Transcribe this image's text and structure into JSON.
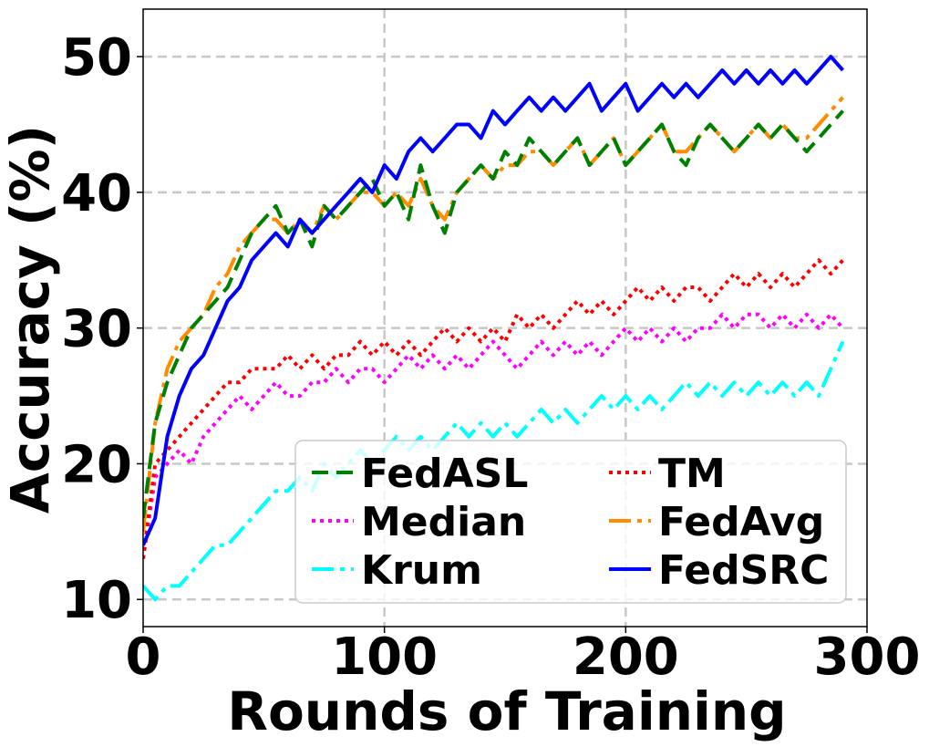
{
  "chart_data": {
    "type": "line",
    "xlabel": "Rounds of Training",
    "ylabel": "Accuracy (%)",
    "xlim": [
      0,
      300
    ],
    "ylim": [
      8,
      53.5
    ],
    "xticks": [
      "0",
      "100",
      "200",
      "300"
    ],
    "yticks": [
      "10",
      "20",
      "30",
      "40",
      "50"
    ],
    "grid": true,
    "legend_position": "lower-right",
    "x_start": 0,
    "x_step": 5,
    "series": [
      {
        "name": "FedASL",
        "color": "#008000",
        "dash": "18,9",
        "values": [
          16,
          23,
          26,
          28,
          30,
          31,
          32,
          33,
          35,
          37,
          38,
          39,
          37,
          38,
          36,
          39,
          38,
          39,
          40,
          41,
          39,
          40,
          38,
          42,
          39,
          37,
          40,
          41,
          42,
          41,
          43,
          42,
          44,
          43,
          42,
          43,
          44,
          42,
          43,
          44,
          42,
          43,
          44,
          45,
          43,
          42,
          44,
          45,
          44,
          43,
          44,
          45,
          44,
          45,
          44,
          43,
          44,
          45,
          46
        ]
      },
      {
        "name": "Median",
        "color": "#ff00ff",
        "dash": "4,5",
        "values": [
          13,
          19,
          20,
          21,
          20,
          22,
          23,
          24,
          25,
          24,
          25,
          26,
          25,
          25,
          26,
          26,
          27,
          26,
          27,
          27,
          26,
          27,
          28,
          27,
          28,
          27,
          28,
          27,
          28,
          29,
          28,
          27,
          28,
          29,
          28,
          29,
          28,
          29,
          28,
          29,
          30,
          29,
          30,
          29,
          30,
          29,
          30,
          30,
          31,
          30,
          31,
          31,
          30,
          31,
          30,
          31,
          30,
          31,
          30
        ]
      },
      {
        "name": "Krum",
        "color": "#00ffff",
        "dash": "24,7,5,7",
        "values": [
          11,
          10,
          11,
          11,
          12,
          13,
          14,
          14,
          15,
          16,
          17,
          18,
          18,
          19,
          18,
          20,
          19,
          20,
          21,
          20,
          21,
          22,
          21,
          22,
          21,
          22,
          23,
          22,
          23,
          22,
          23,
          22,
          23,
          24,
          23,
          24,
          23,
          24,
          25,
          24,
          25,
          24,
          25,
          24,
          25,
          26,
          25,
          26,
          25,
          26,
          25,
          26,
          25,
          26,
          25,
          26,
          25,
          27,
          29
        ]
      },
      {
        "name": "TM",
        "color": "#ff0000",
        "dash": "4,5",
        "values": [
          13,
          20,
          21,
          22,
          23,
          24,
          25,
          26,
          26,
          27,
          27,
          27,
          28,
          27,
          28,
          27,
          28,
          28,
          29,
          28,
          29,
          28,
          29,
          28,
          29,
          30,
          29,
          30,
          29,
          30,
          29,
          31,
          30,
          31,
          30,
          31,
          32,
          31,
          32,
          31,
          32,
          33,
          32,
          33,
          32,
          33,
          33,
          32,
          33,
          34,
          33,
          34,
          33,
          34,
          33,
          34,
          35,
          34,
          35
        ]
      },
      {
        "name": "FedAvg",
        "color": "#ff8c00",
        "dash": "24,7,5,7",
        "values": [
          15,
          23,
          27,
          29,
          30,
          31,
          33,
          34,
          36,
          37,
          38,
          38,
          37,
          38,
          37,
          39,
          38,
          39,
          40,
          40,
          39,
          40,
          39,
          41,
          39,
          38,
          40,
          41,
          42,
          41,
          42,
          42,
          43,
          43,
          42,
          43,
          44,
          42,
          43,
          44,
          42,
          43,
          44,
          45,
          43,
          43,
          44,
          45,
          44,
          43,
          44,
          45,
          44,
          45,
          44,
          44,
          45,
          46,
          47
        ]
      },
      {
        "name": "FedSRC",
        "color": "#0000ff",
        "dash": "",
        "values": [
          14,
          16,
          22,
          25,
          27,
          28,
          30,
          32,
          33,
          35,
          36,
          37,
          36,
          38,
          37,
          38,
          39,
          40,
          41,
          40,
          42,
          41,
          43,
          44,
          43,
          44,
          45,
          45,
          44,
          46,
          45,
          46,
          47,
          46,
          47,
          46,
          47,
          48,
          46,
          47,
          48,
          46,
          47,
          48,
          47,
          48,
          47,
          48,
          49,
          48,
          49,
          48,
          49,
          48,
          49,
          48,
          49,
          50,
          49
        ]
      }
    ]
  }
}
